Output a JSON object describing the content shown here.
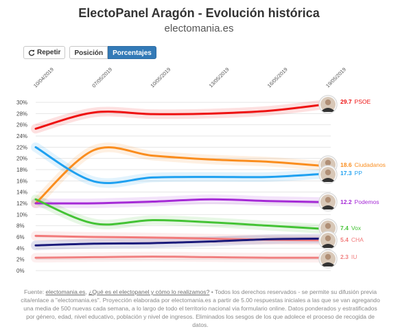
{
  "header": {
    "title": "ElectoPanel Aragón - Evolución histórica",
    "subtitle": "electomania.es"
  },
  "toolbar": {
    "repeat_label": "Repetir",
    "position_label": "Posición",
    "percent_label": "Porcentajes",
    "repeat_icon": "refresh-icon"
  },
  "chart_data": {
    "type": "line",
    "x_labels": [
      "10/04/2019",
      "07/05/2019",
      "10/05/2019",
      "13/05/2019",
      "16/05/2019",
      "19/05/2019"
    ],
    "y_ticks": [
      "0%",
      "2%",
      "4%",
      "6%",
      "8%",
      "10%",
      "12%",
      "14%",
      "16%",
      "18%",
      "20%",
      "22%",
      "24%",
      "26%",
      "28%",
      "30%"
    ],
    "ylim": [
      0,
      30
    ],
    "grid": true,
    "series": [
      {
        "name": "PSOE",
        "color": "#ee1111",
        "values": [
          25.3,
          28.2,
          27.9,
          28.0,
          28.5,
          29.7
        ],
        "end_label": "29.7",
        "avatar": "portrait-icon"
      },
      {
        "name": "Ciudadanos",
        "color": "#fa8d1e",
        "values": [
          12.0,
          21.5,
          20.5,
          19.8,
          19.4,
          18.6
        ],
        "end_label": "18.6",
        "avatar": "portrait-icon"
      },
      {
        "name": "PP",
        "color": "#1ea0f0",
        "values": [
          22.0,
          15.9,
          16.6,
          16.7,
          16.7,
          17.3
        ],
        "end_label": "17.3",
        "avatar": "portrait-icon"
      },
      {
        "name": "Podemos",
        "color": "#a52ad6",
        "values": [
          12.0,
          12.0,
          12.3,
          12.7,
          12.4,
          12.2
        ],
        "end_label": "12.2",
        "avatar": "portrait-icon"
      },
      {
        "name": "Vox",
        "color": "#44c335",
        "values": [
          12.7,
          8.4,
          9.0,
          8.6,
          8.0,
          7.4
        ],
        "end_label": "7.4",
        "avatar": "portrait-icon"
      },
      {
        "name": "CHA",
        "color": "#f27a7a",
        "values": [
          6.2,
          6.0,
          5.9,
          5.7,
          5.5,
          5.4
        ],
        "end_label": "5.4",
        "avatar": "portrait-icon"
      },
      {
        "name": "IU",
        "color": "#f08080",
        "values": [
          2.3,
          2.4,
          2.5,
          2.4,
          2.3,
          2.3
        ],
        "end_label": "2.3",
        "avatar": "portrait-icon"
      },
      {
        "name": "",
        "color": "#1a1a7a",
        "values": [
          4.5,
          4.8,
          4.9,
          5.2,
          5.6,
          5.7
        ],
        "end_label": "",
        "avatar": ""
      }
    ]
  },
  "footer": {
    "source_prefix": "Fuente: ",
    "source_link": "electomania.es",
    "sep1": ", ",
    "question_link": "¿Qué es el electopanel y cómo lo realizamos?",
    "body": " • Todos los derechos reservados - se permite su difusión previa cita/enlace a \"electomania.es\". Proyección elaborada por electomania.es a partir de 5.00 respuestas iniciales a las que se van agregando una media de 500 nuevas cada semana, a lo largo de todo el territorio nacional via formulario online. Datos ponderados y estratificados por género, edad, nivel educativo, población y nivel de ingresos. Eliminados los sesgos de los que adolece el proceso de recogida de datos."
  }
}
